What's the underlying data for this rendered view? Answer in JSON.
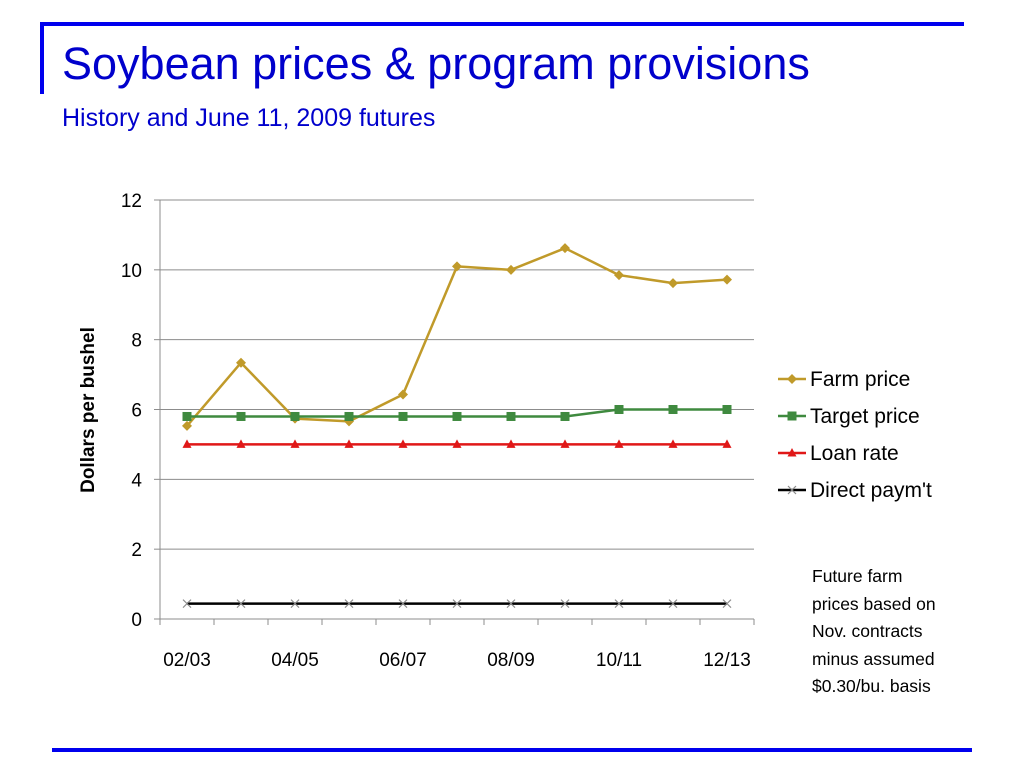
{
  "slide": {
    "title": "Soybean prices & program provisions",
    "subtitle": "History and June 11, 2009 futures",
    "note": "Future farm\nprices based on\nNov. contracts\nminus assumed\n$0.30/bu. basis"
  },
  "chart_data": {
    "type": "line",
    "title": "",
    "xlabel": "",
    "ylabel": "Dollars per bushel",
    "ylim": [
      0,
      12
    ],
    "yticks": [
      0,
      2,
      4,
      6,
      8,
      10,
      12
    ],
    "x_points": 11,
    "x_tick_labels": [
      {
        "index": 0,
        "label": "02/03"
      },
      {
        "index": 2,
        "label": "04/05"
      },
      {
        "index": 4,
        "label": "06/07"
      },
      {
        "index": 6,
        "label": "08/09"
      },
      {
        "index": 8,
        "label": "10/11"
      },
      {
        "index": 10,
        "label": "12/13"
      }
    ],
    "grid": "horizontal",
    "legend": "right",
    "series": [
      {
        "name": "Farm price",
        "color": "#c09a2a",
        "marker": "diamond",
        "values": [
          5.53,
          7.34,
          5.74,
          5.66,
          6.43,
          10.1,
          10.0,
          10.62,
          9.85,
          9.62,
          9.72
        ]
      },
      {
        "name": "Target price",
        "color": "#3f8a3f",
        "marker": "square",
        "values": [
          5.8,
          5.8,
          5.8,
          5.8,
          5.8,
          5.8,
          5.8,
          5.8,
          6.0,
          6.0,
          6.0
        ]
      },
      {
        "name": "Loan rate",
        "color": "#e01818",
        "marker": "triangle",
        "values": [
          5.0,
          5.0,
          5.0,
          5.0,
          5.0,
          5.0,
          5.0,
          5.0,
          5.0,
          5.0,
          5.0
        ]
      },
      {
        "name": "Direct paym't",
        "color": "#000000",
        "marker": "x",
        "values": [
          0.44,
          0.44,
          0.44,
          0.44,
          0.44,
          0.44,
          0.44,
          0.44,
          0.44,
          0.44,
          0.44
        ]
      }
    ]
  }
}
